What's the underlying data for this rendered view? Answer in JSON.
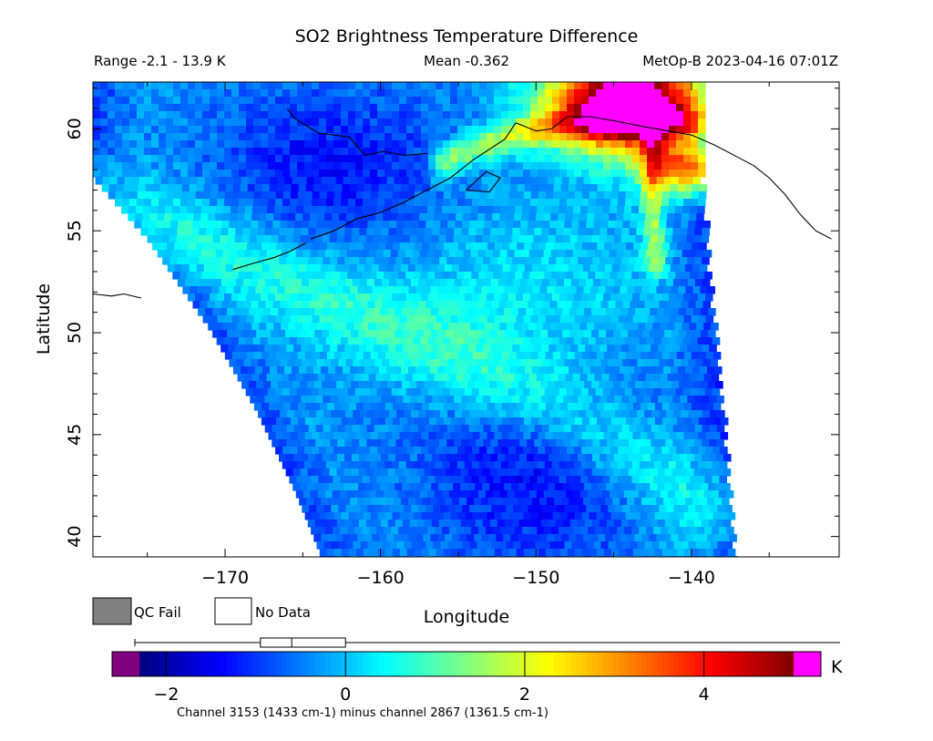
{
  "chart_data": {
    "type": "heatmap",
    "title": "SO2 Brightness Temperature Difference",
    "header": {
      "range": "Range -2.1 - 13.9 K",
      "mean": "Mean -0.362",
      "satellite_time": "MetOp-B 2023-04-16 07:01Z"
    },
    "xlabel": "Longitude",
    "ylabel": "Latitude",
    "xlim": [
      -178.5,
      -130.5
    ],
    "ylim": [
      39.0,
      62.3
    ],
    "x_ticks": [
      -170,
      -160,
      -150,
      -140
    ],
    "y_ticks": [
      40,
      45,
      50,
      55,
      60
    ],
    "grid": false,
    "legend": {
      "qc_fail": "QC Fail",
      "no_data": "No Data",
      "qc_fail_color": "#808080",
      "no_data_color": "#ffffff"
    },
    "colorbar": {
      "unit": "K",
      "range": [
        -2.3,
        5.0
      ],
      "ticks": [
        -2,
        0,
        2,
        4
      ],
      "under_color": "#800080",
      "over_color": "#ff00ff",
      "colormap": [
        "#000080",
        "#0000ff",
        "#0080ff",
        "#00ffff",
        "#80ff80",
        "#ffff00",
        "#ff8000",
        "#ff0000",
        "#800000"
      ],
      "caption": "Channel 3153 (1433 cm-1) minus channel 2867 (1361.5 cm-1)",
      "boxplot": {
        "min": -2.1,
        "q1": -0.95,
        "median": -0.6,
        "q3": 0.0,
        "max": 13.9
      }
    },
    "swath_edges": {
      "west": [
        [
          -178.5,
          57.6
        ],
        [
          -175,
          54.6
        ],
        [
          -171,
          50.2
        ],
        [
          -168,
          46.2
        ],
        [
          -165.5,
          42.2
        ],
        [
          -163.8,
          39.0
        ]
      ],
      "east": [
        [
          -139.3,
          62.3
        ],
        [
          -139.5,
          58.0
        ],
        [
          -139.0,
          53.0
        ],
        [
          -138.4,
          48.0
        ],
        [
          -137.8,
          43.0
        ],
        [
          -137.4,
          39.0
        ]
      ]
    },
    "field_features": [
      {
        "name": "swath-edge-cool-band",
        "type": "edge",
        "value": -1.0
      },
      {
        "name": "diagonal-warm-band",
        "type": "band",
        "points": [
          [
            -178,
            56.0
          ],
          [
            -170,
            54.0
          ],
          [
            -163,
            51.5
          ],
          [
            -156,
            49.0
          ],
          [
            -149,
            46.5
          ],
          [
            -144,
            44.0
          ],
          [
            -139,
            41.5
          ]
        ],
        "value": 1.0,
        "width_deg": 1.6
      },
      {
        "name": "gulf-of-alaska-warm-patch",
        "type": "blob",
        "center": [
          -151,
          51.0
        ],
        "radius_deg": 3.5,
        "value": 0.5
      },
      {
        "name": "cold-pocket-north",
        "type": "blob",
        "center": [
          -163,
          58.0
        ],
        "radius_deg": 3.0,
        "value": -1.4
      },
      {
        "name": "cold-pocket-south",
        "type": "blob",
        "center": [
          -150,
          43.5
        ],
        "radius_deg": 4.0,
        "value": -1.5
      },
      {
        "name": "alaska-range-hotspot",
        "type": "blob",
        "center": [
          -144,
          61.3
        ],
        "radius_deg": 1.7,
        "value": 7.0
      },
      {
        "name": "eastern-edge-anomaly",
        "type": "blob",
        "center": [
          -140.3,
          58.0
        ],
        "radius_deg": 0.9,
        "value": 3.8
      },
      {
        "name": "coast-warm-strip",
        "type": "band",
        "points": [
          [
            -156,
            58.4
          ],
          [
            -152,
            59.6
          ],
          [
            -148,
            60.2
          ],
          [
            -144,
            60.4
          ],
          [
            -140,
            60.3
          ]
        ],
        "value": 2.2,
        "width_deg": 0.6
      },
      {
        "name": "eastern-ridge-line",
        "type": "band",
        "points": [
          [
            -142.5,
            59.0
          ],
          [
            -142.5,
            56.0
          ],
          [
            -142.3,
            53.5
          ]
        ],
        "value": 2.0,
        "width_deg": 0.5
      }
    ],
    "coastlines": [
      {
        "name": "alaska-peninsula",
        "points": [
          [
            -164.5,
            54.6
          ],
          [
            -163,
            55.0
          ],
          [
            -161.5,
            55.6
          ],
          [
            -160,
            55.9
          ],
          [
            -158.5,
            56.4
          ],
          [
            -157,
            57.0
          ],
          [
            -155.5,
            57.6
          ],
          [
            -154,
            58.5
          ],
          [
            -153,
            59.0
          ],
          [
            -152,
            59.5
          ],
          [
            -151.3,
            60.3
          ]
        ]
      },
      {
        "name": "bristol-bay-coast",
        "points": [
          [
            -157,
            58.8
          ],
          [
            -158.5,
            58.7
          ],
          [
            -159.8,
            58.9
          ],
          [
            -161,
            58.7
          ],
          [
            -162,
            59.6
          ],
          [
            -164,
            59.8
          ],
          [
            -165.5,
            60.5
          ],
          [
            -166,
            61.0
          ]
        ]
      },
      {
        "name": "south-coast",
        "points": [
          [
            -151.3,
            60.3
          ],
          [
            -150,
            59.9
          ],
          [
            -149,
            60.0
          ],
          [
            -148,
            60.6
          ],
          [
            -146.5,
            60.6
          ],
          [
            -145,
            60.4
          ],
          [
            -143,
            60.1
          ],
          [
            -141.5,
            59.9
          ],
          [
            -140,
            59.7
          ],
          [
            -138.5,
            59.2
          ],
          [
            -137,
            58.6
          ],
          [
            -136,
            58.2
          ],
          [
            -135,
            57.6
          ],
          [
            -134,
            56.8
          ],
          [
            -133,
            55.8
          ],
          [
            -132,
            55.0
          ],
          [
            -131,
            54.6
          ]
        ]
      },
      {
        "name": "kodiak-island",
        "points": [
          [
            -154.5,
            57.0
          ],
          [
            -153.2,
            57.9
          ],
          [
            -152.3,
            57.6
          ],
          [
            -153.0,
            56.9
          ],
          [
            -154.5,
            57.0
          ]
        ]
      },
      {
        "name": "aleutians-east",
        "points": [
          [
            -169.5,
            53.1
          ],
          [
            -168.2,
            53.4
          ],
          [
            -166.8,
            53.7
          ],
          [
            -165.8,
            54.0
          ],
          [
            -164.8,
            54.4
          ]
        ]
      },
      {
        "name": "aleutians-west",
        "points": [
          [
            -178.5,
            51.9
          ],
          [
            -177.3,
            51.8
          ],
          [
            -176.5,
            51.9
          ],
          [
            -175.4,
            51.7
          ]
        ]
      }
    ]
  }
}
